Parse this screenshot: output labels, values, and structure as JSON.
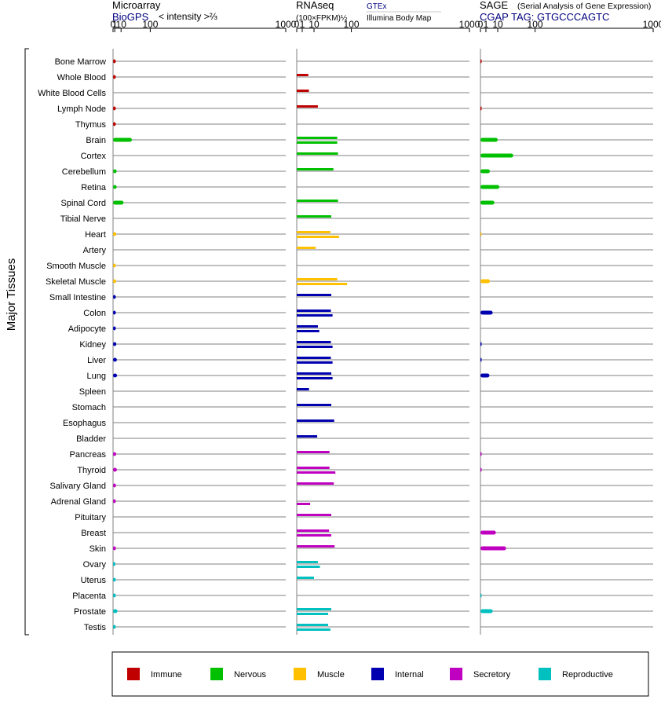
{
  "headers": {
    "microarray_title": "Microarray",
    "microarray_source": "BioGPS",
    "microarray_scale": "< intensity >⅔",
    "rnaseq_title": "RNAseq",
    "rnaseq_scale": "(100×FPKM)½",
    "rnaseq_source1": "GTEx",
    "rnaseq_source2": "Illumina Body Map",
    "sage_title": "SAGE",
    "sage_subtitle": "(Serial Analysis of Gene Expression)",
    "sage_tag": "CGAP TAG: GTGCCCAGTC"
  },
  "y_axis_label": "Major Tissues",
  "colors": {
    "Immune": "#c00000",
    "Nervous": "#00c000",
    "Muscle": "#ffc000",
    "Internal": "#0000b0",
    "Secretory": "#c000c0",
    "Reproductive": "#00c0c0"
  },
  "chart_data": {
    "type": "bar",
    "x_scale": "power",
    "x_ticks": [
      "0",
      "1",
      "10",
      "100",
      "1000"
    ],
    "x_tick_values": [
      0,
      1,
      10,
      100,
      1000
    ],
    "tissues": [
      "Bone Marrow",
      "Whole Blood",
      "White Blood Cells",
      "Lymph Node",
      "Thymus",
      "Brain",
      "Cortex",
      "Cerebellum",
      "Retina",
      "Spinal Cord",
      "Tibial Nerve",
      "Heart",
      "Artery",
      "Smooth Muscle",
      "Skeletal Muscle",
      "Small Intestine",
      "Colon",
      "Adipocyte",
      "Kidney",
      "Liver",
      "Lung",
      "Spleen",
      "Stomach",
      "Esophagus",
      "Bladder",
      "Pancreas",
      "Thyroid",
      "Salivary Gland",
      "Adrenal Gland",
      "Pituitary",
      "Breast",
      "Skin",
      "Ovary",
      "Uterus",
      "Placenta",
      "Prostate",
      "Testis"
    ],
    "systems": [
      "Immune",
      "Immune",
      "Immune",
      "Immune",
      "Immune",
      "Nervous",
      "Nervous",
      "Nervous",
      "Nervous",
      "Nervous",
      "Nervous",
      "Muscle",
      "Muscle",
      "Muscle",
      "Muscle",
      "Internal",
      "Internal",
      "Internal",
      "Internal",
      "Internal",
      "Internal",
      "Internal",
      "Internal",
      "Internal",
      "Internal",
      "Secretory",
      "Secretory",
      "Secretory",
      "Secretory",
      "Secretory",
      "Secretory",
      "Secretory",
      "Reproductive",
      "Reproductive",
      "Reproductive",
      "Reproductive",
      "Reproductive"
    ],
    "microarray": [
      2,
      2,
      null,
      2,
      2,
      36,
      null,
      3,
      3,
      15,
      null,
      2.5,
      null,
      2,
      2.4,
      2,
      2,
      2,
      2.6,
      3.3,
      3.5,
      null,
      null,
      null,
      null,
      2.4,
      3.3,
      2.2,
      2,
      null,
      null,
      2.1,
      1.5,
      2,
      2,
      4,
      2
    ],
    "rnaseq_gtex": [
      null,
      4.5,
      5,
      15,
      null,
      55,
      57,
      45,
      null,
      57,
      40,
      38,
      12,
      null,
      55,
      40,
      39,
      15,
      39,
      39,
      40,
      5,
      40,
      47,
      14,
      36,
      36,
      46,
      null,
      40,
      35,
      48,
      15,
      10,
      null,
      40,
      33
    ],
    "rnaseq_ibm": [
      null,
      null,
      null,
      null,
      null,
      55,
      null,
      null,
      null,
      null,
      null,
      60,
      null,
      null,
      85,
      null,
      43,
      17,
      43,
      43,
      43,
      null,
      null,
      null,
      null,
      null,
      50,
      null,
      6,
      null,
      40,
      null,
      18,
      null,
      null,
      33,
      38
    ],
    "sage": [
      0.05,
      null,
      null,
      0.05,
      null,
      10,
      36,
      3,
      12,
      6.5,
      null,
      0.02,
      null,
      null,
      3,
      null,
      5,
      null,
      0.05,
      0.05,
      2.7,
      null,
      null,
      null,
      null,
      0.05,
      0.05,
      null,
      null,
      null,
      8,
      22,
      null,
      null,
      0.02,
      5,
      null
    ]
  },
  "legend": [
    "Immune",
    "Nervous",
    "Muscle",
    "Internal",
    "Secretory",
    "Reproductive"
  ]
}
